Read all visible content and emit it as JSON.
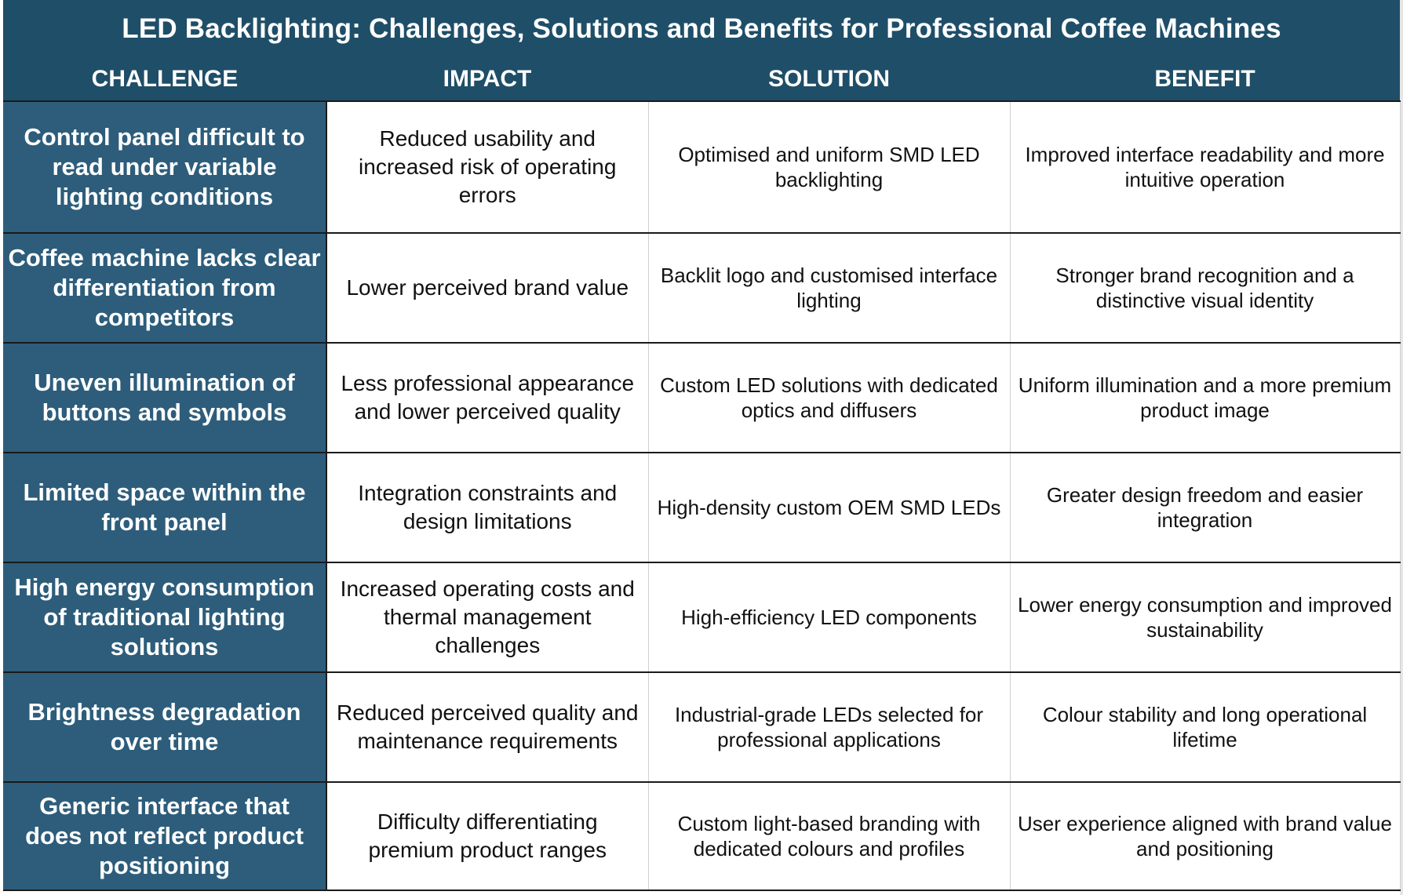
{
  "title": "LED Backlighting: Challenges, Solutions and Benefits for Professional Coffee Machines",
  "header_color": "#1f4e68",
  "challenge_color": "#2d5d7b",
  "columns": [
    "CHALLENGE",
    "IMPACT",
    "SOLUTION",
    "BENEFIT"
  ],
  "rows": [
    {
      "challenge": "Control panel difficult to read under variable lighting conditions",
      "impact": "Reduced usability and increased risk of operating errors",
      "solution": "Optimised and uniform SMD LED backlighting",
      "benefit": "Improved interface readability and more intuitive operation"
    },
    {
      "challenge": "Coffee machine lacks clear differentiation from competitors",
      "impact": "Lower perceived brand value",
      "solution": "Backlit logo and customised interface lighting",
      "benefit": "Stronger brand recognition and a distinctive visual identity"
    },
    {
      "challenge": "Uneven illumination of buttons and symbols",
      "impact": "Less professional appearance and lower perceived quality",
      "solution": "Custom LED solutions with dedicated optics and diffusers",
      "benefit": "Uniform illumination and a more premium product image"
    },
    {
      "challenge": "Limited space within the front panel",
      "impact": "Integration constraints and design limitations",
      "solution": "High-density custom OEM SMD LEDs",
      "benefit": "Greater design freedom and easier integration"
    },
    {
      "challenge": "High energy consumption of traditional lighting solutions",
      "impact": "Increased operating costs and thermal management challenges",
      "solution": "High-efficiency LED components",
      "benefit": "Lower energy consumption and improved sustainability"
    },
    {
      "challenge": "Brightness degradation over time",
      "impact": "Reduced perceived quality and maintenance requirements",
      "solution": "Industrial-grade LEDs selected for professional applications",
      "benefit": "Colour stability and long operational lifetime"
    },
    {
      "challenge": "Generic interface that does not reflect product positioning",
      "impact": "Difficulty differentiating premium product ranges",
      "solution": "Custom light-based branding with dedicated colours and profiles",
      "benefit": "User experience aligned with brand value and positioning"
    }
  ]
}
